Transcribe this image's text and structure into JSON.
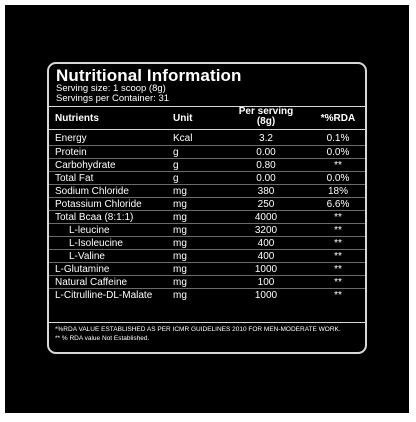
{
  "label": {
    "title": "Nutritional Information",
    "serving_size": "Serving size: 1 scoop (8g)",
    "servings_per_container": "Servings per Container: 31",
    "columns": {
      "nutrients": "Nutrients",
      "unit": "Unit",
      "per_serving_line1": "Per serving",
      "per_serving_line2": "(8g)",
      "rda": "*%RDA"
    },
    "rows": [
      {
        "name": "Energy",
        "unit": "Kcal",
        "per_serving": "3.2",
        "rda": "0.1%",
        "indent": false
      },
      {
        "name": "Protein",
        "unit": "g",
        "per_serving": "0.00",
        "rda": "0.0%",
        "indent": false
      },
      {
        "name": "Carbohydrate",
        "unit": "g",
        "per_serving": "0.80",
        "rda": "**",
        "indent": false
      },
      {
        "name": "Total Fat",
        "unit": "g",
        "per_serving": "0.00",
        "rda": "0.0%",
        "indent": false
      },
      {
        "name": "Sodium Chloride",
        "unit": "mg",
        "per_serving": "380",
        "rda": "18%",
        "indent": false
      },
      {
        "name": "Potassium Chloride",
        "unit": "mg",
        "per_serving": "250",
        "rda": "6.6%",
        "indent": false
      },
      {
        "name": "Total Bcaa (8:1:1)",
        "unit": "mg",
        "per_serving": "4000",
        "rda": "**",
        "indent": false
      },
      {
        "name": "L-leucine",
        "unit": "mg",
        "per_serving": "3200",
        "rda": "**",
        "indent": true
      },
      {
        "name": "L-Isoleucine",
        "unit": "mg",
        "per_serving": "400",
        "rda": "**",
        "indent": true
      },
      {
        "name": "L-Valine",
        "unit": "mg",
        "per_serving": "400",
        "rda": "**",
        "indent": true
      },
      {
        "name": "L-Glutamine",
        "unit": "mg",
        "per_serving": "1000",
        "rda": "**",
        "indent": false
      },
      {
        "name": "Natural Caffeine",
        "unit": "mg",
        "per_serving": "100",
        "rda": "**",
        "indent": false
      },
      {
        "name": "L-Citrulline-DL-Malate",
        "unit": "mg",
        "per_serving": "1000",
        "rda": "**",
        "indent": false
      }
    ],
    "footnote1": "*%RDA VALUE ESTABLISHED AS PER ICMR GUIDELINES 2010 FOR MEN-MODERATE WORK.",
    "footnote2": "** % RDA value Not Established."
  }
}
